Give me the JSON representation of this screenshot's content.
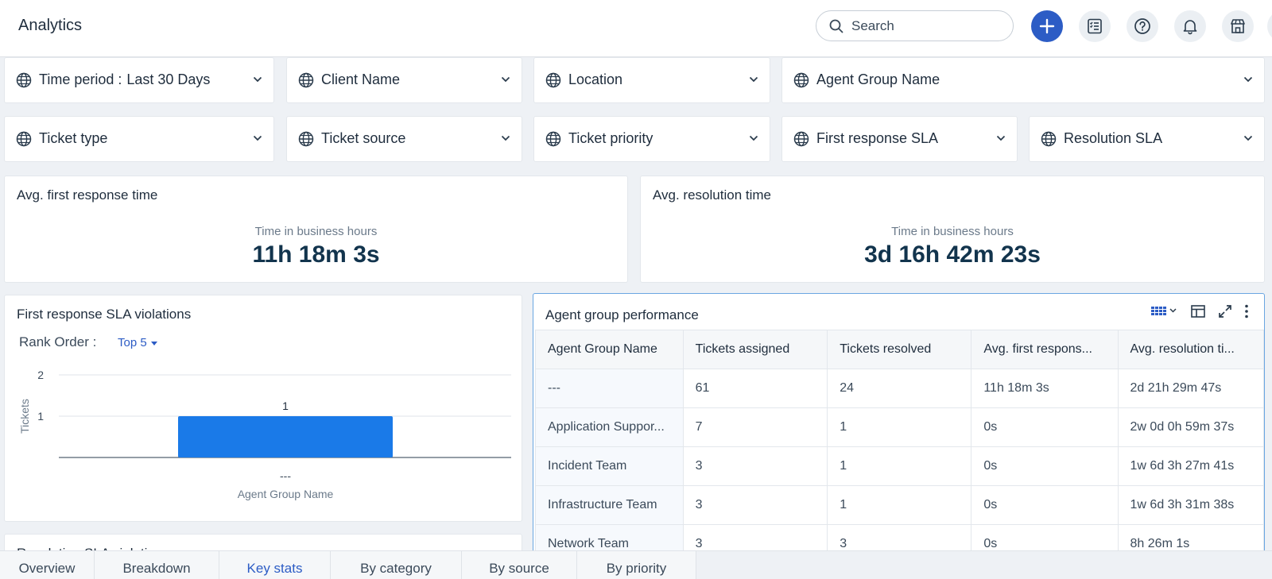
{
  "header": {
    "title": "Analytics",
    "search_placeholder": "Search"
  },
  "filters": [
    {
      "label": "Time period :",
      "value": "Last 30 Days"
    },
    {
      "label": "Client Name"
    },
    {
      "label": "Location"
    },
    {
      "label": "Agent Group Name"
    },
    {
      "label": "Ticket type"
    },
    {
      "label": "Ticket source"
    },
    {
      "label": "Ticket priority"
    },
    {
      "label": "First response SLA"
    },
    {
      "label": "Resolution SLA"
    }
  ],
  "metrics": {
    "first_response": {
      "title": "Avg. first response time",
      "sub": "Time in business hours",
      "value": "11h 18m 3s"
    },
    "resolution": {
      "title": "Avg. resolution time",
      "sub": "Time in business hours",
      "value": "3d 16h 42m 23s"
    }
  },
  "sla_chart": {
    "title": "First response SLA violations",
    "rank_label": "Rank Order :",
    "rank_value": "Top 5"
  },
  "chart_data": {
    "type": "bar",
    "categories": [
      "---"
    ],
    "values": [
      1
    ],
    "data_labels": [
      "1"
    ],
    "xlabel": "Agent Group Name",
    "ylabel": "Tickets",
    "ylim": [
      0,
      2
    ],
    "yticks": [
      "1",
      "2"
    ],
    "grid": true,
    "bar_color": "#1a7ae8"
  },
  "table": {
    "title": "Agent group performance",
    "columns": [
      "Agent Group Name",
      "Tickets assigned",
      "Tickets resolved",
      "Avg. first respons...",
      "Avg. resolution ti..."
    ],
    "rows": [
      [
        "---",
        "61",
        "24",
        "11h 18m 3s",
        "2d 21h 29m 47s"
      ],
      [
        "Application Suppor...",
        "7",
        "1",
        "0s",
        "2w 0d 0h 59m 37s"
      ],
      [
        "Incident Team",
        "3",
        "1",
        "0s",
        "1w 6d 3h 27m 41s"
      ],
      [
        "Infrastructure Team",
        "3",
        "1",
        "0s",
        "1w 6d 3h 31m 38s"
      ],
      [
        "Network Team",
        "3",
        "3",
        "0s",
        "8h 26m 1s"
      ]
    ]
  },
  "next_card": {
    "title": "Resolution SLA violations"
  },
  "tabs": [
    "Overview",
    "Breakdown",
    "Key stats",
    "By category",
    "By source",
    "By priority"
  ],
  "active_tab": "Key stats",
  "colors": {
    "accent": "#2c5cc5",
    "bar": "#1a7ae8"
  }
}
